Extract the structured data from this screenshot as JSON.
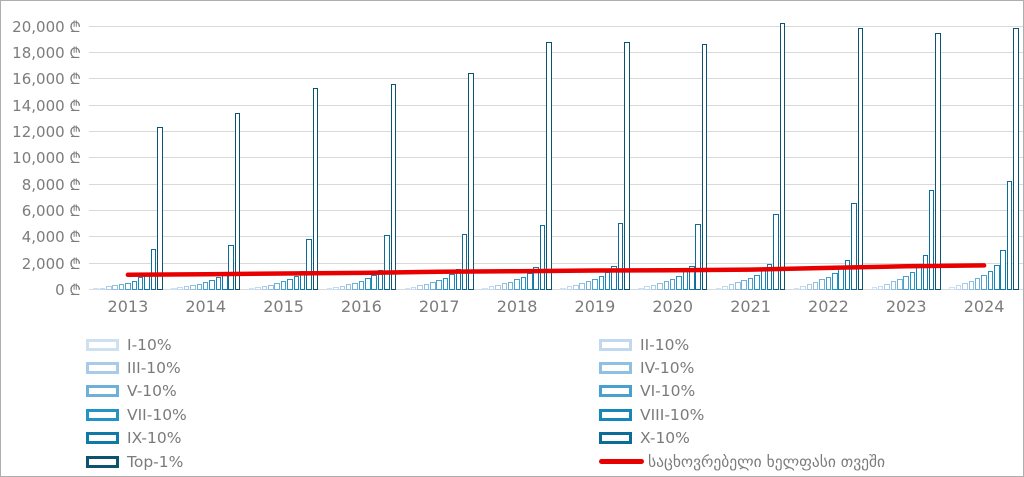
{
  "chart_data": {
    "type": "bar",
    "title": "",
    "xlabel": "",
    "ylabel": "",
    "grid": true,
    "legend_position": "bottom-two-columns",
    "currency": "₾",
    "ylim": [
      0,
      20000
    ],
    "y_axis": {
      "ticks": [
        {
          "value": 0,
          "label": "0 ₾"
        },
        {
          "value": 2000,
          "label": "2,000 ₾"
        },
        {
          "value": 4000,
          "label": "4,000 ₾"
        },
        {
          "value": 6000,
          "label": "6,000 ₾"
        },
        {
          "value": 8000,
          "label": "8,000 ₾"
        },
        {
          "value": 10000,
          "label": "10,000 ₾"
        },
        {
          "value": 12000,
          "label": "12,000 ₾"
        },
        {
          "value": 14000,
          "label": "14,000 ₾"
        },
        {
          "value": 16000,
          "label": "16,000 ₾"
        },
        {
          "value": 18000,
          "label": "18,000 ₾"
        },
        {
          "value": 20000,
          "label": "20,000 ₾"
        }
      ]
    },
    "categories": [
      "2013",
      "2014",
      "2015",
      "2016",
      "2017",
      "2018",
      "2019",
      "2020",
      "2021",
      "2022",
      "2023",
      "2024"
    ],
    "series": [
      {
        "id": "i-10",
        "name": "I-10%",
        "color": "#cfe0f1",
        "values": [
          110,
          120,
          130,
          140,
          150,
          160,
          170,
          170,
          180,
          190,
          200,
          210
        ]
      },
      {
        "id": "ii-10",
        "name": "II-10%",
        "color": "#c2d8ee",
        "values": [
          190,
          210,
          220,
          240,
          250,
          270,
          290,
          290,
          310,
          330,
          340,
          360
        ]
      },
      {
        "id": "iii-10",
        "name": "III-10%",
        "color": "#a9cbe8",
        "values": [
          270,
          290,
          310,
          330,
          350,
          380,
          400,
          410,
          440,
          470,
          490,
          520
        ]
      },
      {
        "id": "iv-10",
        "name": "IV-10%",
        "color": "#90bfe1",
        "values": [
          350,
          380,
          410,
          440,
          460,
          500,
          530,
          540,
          580,
          620,
          650,
          690
        ]
      },
      {
        "id": "v-10",
        "name": "V-10%",
        "color": "#6db1d9",
        "values": [
          440,
          480,
          520,
          560,
          590,
          640,
          680,
          690,
          740,
          800,
          840,
          890
        ]
      },
      {
        "id": "vi-10",
        "name": "VI-10%",
        "color": "#47a0cf",
        "values": [
          560,
          600,
          650,
          700,
          740,
          800,
          850,
          860,
          930,
          1000,
          1060,
          1140
        ]
      },
      {
        "id": "vii-10",
        "name": "VII-10%",
        "color": "#2392c5",
        "values": [
          700,
          760,
          820,
          880,
          930,
          1000,
          1060,
          1080,
          1160,
          1260,
          1330,
          1440
        ]
      },
      {
        "id": "viii-10",
        "name": "VIII-10%",
        "color": "#1787b9",
        "values": [
          950,
          1020,
          1100,
          1170,
          1230,
          1320,
          1400,
          1420,
          1530,
          1660,
          1760,
          1900
        ]
      },
      {
        "id": "ix-10",
        "name": "IX-10%",
        "color": "#0f79a8",
        "values": [
          1300,
          1380,
          1450,
          1530,
          1600,
          1720,
          1800,
          1830,
          1950,
          2280,
          2660,
          3050
        ]
      },
      {
        "id": "x-10",
        "name": "X-10%",
        "color": "#0d6c97",
        "values": [
          3150,
          3400,
          3900,
          4200,
          4250,
          4950,
          5050,
          5000,
          5750,
          6600,
          7600,
          8300
        ]
      },
      {
        "id": "top-1",
        "name": "Top-1%",
        "color": "#0c536f",
        "values": [
          12400,
          13400,
          15300,
          15600,
          16450,
          18800,
          18800,
          18700,
          20300,
          19850,
          19500,
          19850
        ]
      }
    ],
    "line_series": {
      "id": "living-wage",
      "name": "საცხოვრებელი ხელფასი თვეში",
      "color": "#e80000",
      "values": [
        1150,
        1200,
        1250,
        1300,
        1390,
        1430,
        1480,
        1500,
        1550,
        1680,
        1800,
        1870
      ]
    }
  },
  "legend": {
    "columns": [
      {
        "x": 0,
        "item_ids": [
          "i-10",
          "iii-10",
          "v-10",
          "vii-10",
          "ix-10",
          "top-1"
        ]
      },
      {
        "x": 513,
        "item_ids": [
          "ii-10",
          "iv-10",
          "vi-10",
          "viii-10",
          "x-10",
          "living-wage"
        ]
      }
    ]
  }
}
